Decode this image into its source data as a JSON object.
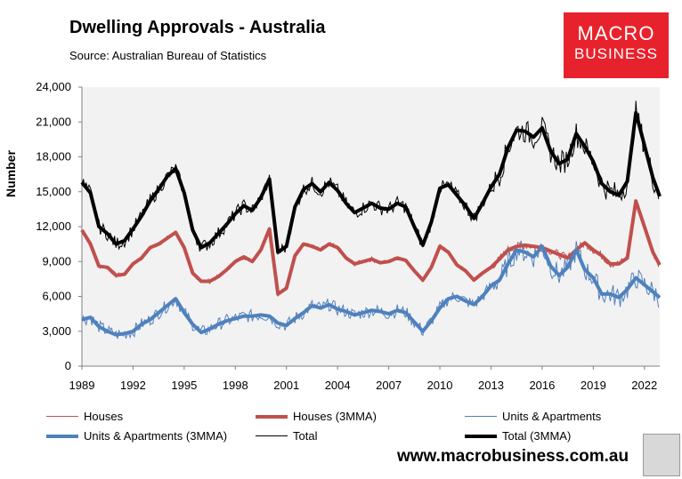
{
  "header": {
    "title": "Dwelling Approvals - Australia",
    "source": "Source:   Australian Bureau of Statistics",
    "logo_line1": "MACRO",
    "logo_line2": "BUSINESS",
    "url": "www.macrobusiness.com.au"
  },
  "colors": {
    "houses": "#c0504d",
    "units": "#4f81bd",
    "total": "#000000",
    "plot_bg": "#f2f2f2",
    "logo": "#e8222c"
  },
  "chart_data": {
    "type": "line",
    "title": "Dwelling Approvals - Australia",
    "xlabel": "",
    "ylabel": "Number",
    "xlim": [
      1989,
      2022.9
    ],
    "ylim": [
      0,
      24000
    ],
    "grid": false,
    "y_ticks": [
      0,
      3000,
      6000,
      9000,
      12000,
      15000,
      18000,
      21000,
      24000
    ],
    "y_tick_labels": [
      "0",
      "3,000",
      "6,000",
      "9,000",
      "12,000",
      "15,000",
      "18,000",
      "21,000",
      "24,000"
    ],
    "x_ticks": [
      1989,
      1992,
      1995,
      1998,
      2001,
      2004,
      2007,
      2010,
      2013,
      2016,
      2019,
      2022
    ],
    "x_tick_labels": [
      "1989",
      "1992",
      "1995",
      "1998",
      "2001",
      "2004",
      "2007",
      "2010",
      "2013",
      "2016",
      "2019",
      "2022"
    ],
    "legend": [
      "Houses",
      "Houses (3MMA)",
      "Units & Apartments",
      "Units & Apartments (3MMA)",
      "Total",
      "Total (3MMA)"
    ],
    "legend_position": "bottom",
    "series": [
      {
        "name": "Houses (3MMA)",
        "x": [
          1989.0,
          1989.5,
          1990.0,
          1990.5,
          1991.0,
          1991.5,
          1992.0,
          1992.5,
          1993.0,
          1993.5,
          1994.0,
          1994.5,
          1995.0,
          1995.5,
          1996.0,
          1996.5,
          1997.0,
          1997.5,
          1998.0,
          1998.5,
          1999.0,
          1999.5,
          2000.0,
          2000.5,
          2001.0,
          2001.5,
          2002.0,
          2002.5,
          2003.0,
          2003.5,
          2004.0,
          2004.5,
          2005.0,
          2005.5,
          2006.0,
          2006.5,
          2007.0,
          2007.5,
          2008.0,
          2008.5,
          2009.0,
          2009.5,
          2010.0,
          2010.5,
          2011.0,
          2011.5,
          2012.0,
          2012.5,
          2013.0,
          2013.5,
          2014.0,
          2014.5,
          2015.0,
          2015.5,
          2016.0,
          2016.5,
          2017.0,
          2017.5,
          2018.0,
          2018.5,
          2019.0,
          2019.5,
          2020.0,
          2020.5,
          2021.0,
          2021.5,
          2022.0,
          2022.5,
          2022.9
        ],
        "values": [
          11700,
          10500,
          8600,
          8500,
          7800,
          7900,
          8800,
          9300,
          10200,
          10500,
          11000,
          11500,
          10200,
          8000,
          7300,
          7300,
          7700,
          8300,
          9000,
          9400,
          9000,
          10000,
          11800,
          6200,
          6700,
          9500,
          10500,
          10300,
          10000,
          10500,
          10200,
          9300,
          8800,
          9000,
          9200,
          8900,
          9000,
          9300,
          9100,
          8200,
          7400,
          8500,
          10300,
          9800,
          8700,
          8200,
          7400,
          8000,
          8500,
          9200,
          10000,
          10300,
          10400,
          10300,
          10200,
          9900,
          9600,
          9300,
          10000,
          10600,
          10000,
          9500,
          8800,
          8800,
          9300,
          14200,
          12000,
          9800,
          8700
        ]
      },
      {
        "name": "Units & Apartments (3MMA)",
        "x": [
          1989.0,
          1989.5,
          1990.0,
          1990.5,
          1991.0,
          1991.5,
          1992.0,
          1992.5,
          1993.0,
          1993.5,
          1994.0,
          1994.5,
          1995.0,
          1995.5,
          1996.0,
          1996.5,
          1997.0,
          1997.5,
          1998.0,
          1998.5,
          1999.0,
          1999.5,
          2000.0,
          2000.5,
          2001.0,
          2001.5,
          2002.0,
          2002.5,
          2003.0,
          2003.5,
          2004.0,
          2004.5,
          2005.0,
          2005.5,
          2006.0,
          2006.5,
          2007.0,
          2007.5,
          2008.0,
          2008.5,
          2009.0,
          2009.5,
          2010.0,
          2010.5,
          2011.0,
          2011.5,
          2012.0,
          2012.5,
          2013.0,
          2013.5,
          2014.0,
          2014.5,
          2015.0,
          2015.5,
          2016.0,
          2016.5,
          2017.0,
          2017.5,
          2018.0,
          2018.5,
          2019.0,
          2019.5,
          2020.0,
          2020.5,
          2021.0,
          2021.5,
          2022.0,
          2022.5,
          2022.9
        ],
        "values": [
          4000,
          4200,
          3400,
          3000,
          2700,
          2800,
          3000,
          3600,
          4000,
          4600,
          5200,
          5800,
          4600,
          3600,
          2900,
          3200,
          3600,
          3900,
          4100,
          4300,
          4300,
          4400,
          4300,
          3700,
          3500,
          4100,
          4600,
          5200,
          5000,
          5300,
          4900,
          4700,
          4400,
          4600,
          4800,
          4700,
          4500,
          4800,
          4600,
          3800,
          3000,
          3900,
          5000,
          5800,
          6000,
          5600,
          5300,
          6000,
          6900,
          7400,
          8800,
          10000,
          9800,
          9400,
          10300,
          8600,
          7800,
          8500,
          10000,
          8300,
          7600,
          6200,
          6200,
          5900,
          6600,
          7600,
          7000,
          6400,
          5900
        ]
      },
      {
        "name": "Total (3MMA)",
        "x": [
          1989.0,
          1989.5,
          1990.0,
          1990.5,
          1991.0,
          1991.5,
          1992.0,
          1992.5,
          1993.0,
          1993.5,
          1994.0,
          1994.5,
          1995.0,
          1995.5,
          1996.0,
          1996.5,
          1997.0,
          1997.5,
          1998.0,
          1998.5,
          1999.0,
          1999.5,
          2000.0,
          2000.5,
          2001.0,
          2001.5,
          2002.0,
          2002.5,
          2003.0,
          2003.5,
          2004.0,
          2004.5,
          2005.0,
          2005.5,
          2006.0,
          2006.5,
          2007.0,
          2007.5,
          2008.0,
          2008.5,
          2009.0,
          2009.5,
          2010.0,
          2010.5,
          2011.0,
          2011.5,
          2012.0,
          2012.5,
          2013.0,
          2013.5,
          2014.0,
          2014.5,
          2015.0,
          2015.5,
          2016.0,
          2016.5,
          2017.0,
          2017.5,
          2018.0,
          2018.5,
          2019.0,
          2019.5,
          2020.0,
          2020.5,
          2021.0,
          2021.5,
          2022.0,
          2022.5,
          2022.9
        ],
        "values": [
          15800,
          14900,
          12000,
          11400,
          10500,
          10800,
          11800,
          12900,
          14200,
          15200,
          16300,
          17000,
          14900,
          11700,
          10200,
          10600,
          11400,
          12200,
          13100,
          13800,
          13400,
          14500,
          16100,
          9800,
          10300,
          13700,
          15200,
          15700,
          15000,
          15800,
          15100,
          14000,
          13200,
          13600,
          14000,
          13600,
          13500,
          14000,
          13700,
          12000,
          10400,
          12400,
          15300,
          15600,
          14700,
          13800,
          12700,
          14000,
          15400,
          16500,
          18800,
          20300,
          20200,
          19700,
          20500,
          18500,
          17400,
          17800,
          20000,
          18900,
          17600,
          15700,
          15000,
          14700,
          15900,
          21800,
          19000,
          16200,
          14600
        ]
      },
      {
        "name": "Houses",
        "x": [],
        "values": []
      },
      {
        "name": "Units & Apartments",
        "x": [],
        "values": []
      },
      {
        "name": "Total",
        "x": [],
        "values": []
      }
    ]
  }
}
